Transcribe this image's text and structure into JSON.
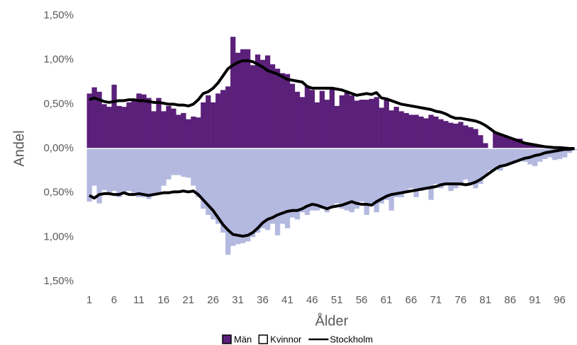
{
  "chart_data": {
    "type": "bar",
    "x_label": "Ålder",
    "y_label": "Andel",
    "ylim": [
      -1.5,
      1.5
    ],
    "yticks": [
      {
        "value": 1.5,
        "label": "1,50%"
      },
      {
        "value": 1,
        "label": "1,00%"
      },
      {
        "value": 0.5,
        "label": "0,50%"
      },
      {
        "value": 0,
        "label": "0,00%"
      },
      {
        "value": -0.5,
        "label": "0,50%"
      },
      {
        "value": -1,
        "label": "1,00%"
      },
      {
        "value": -1.5,
        "label": "1,50%"
      }
    ],
    "categories": [
      1,
      null,
      null,
      null,
      null,
      6,
      null,
      null,
      null,
      null,
      11,
      null,
      null,
      null,
      null,
      16,
      null,
      null,
      null,
      null,
      21,
      null,
      null,
      null,
      null,
      26,
      null,
      null,
      null,
      null,
      31,
      null,
      null,
      null,
      null,
      36,
      null,
      null,
      null,
      null,
      41,
      null,
      null,
      null,
      null,
      46,
      null,
      null,
      null,
      null,
      51,
      null,
      null,
      null,
      null,
      56,
      null,
      null,
      null,
      null,
      61,
      null,
      null,
      null,
      null,
      66,
      null,
      null,
      null,
      null,
      71,
      null,
      null,
      null,
      null,
      76,
      null,
      null,
      null,
      null,
      81,
      null,
      null,
      null,
      null,
      86,
      null,
      null,
      null,
      null,
      91,
      null,
      null,
      null,
      null,
      96,
      null,
      null,
      null
    ],
    "series": [
      {
        "name": "Män",
        "type": "bar",
        "color": "#5b2079",
        "values": [
          0.62,
          0.69,
          0.64,
          0.5,
          0.47,
          0.72,
          0.48,
          0.47,
          0.52,
          0.55,
          0.62,
          0.61,
          0.57,
          0.42,
          0.57,
          0.42,
          0.48,
          0.45,
          0.38,
          0.4,
          0.33,
          0.36,
          0.35,
          0.52,
          0.6,
          0.52,
          0.62,
          0.66,
          0.7,
          1.26,
          1.08,
          1.12,
          1.12,
          0.94,
          1.06,
          1.0,
          1.05,
          0.95,
          0.9,
          0.85,
          0.84,
          0.73,
          0.64,
          0.58,
          0.7,
          0.66,
          0.52,
          0.65,
          0.55,
          0.67,
          0.48,
          0.6,
          0.63,
          0.6,
          0.54,
          0.55,
          0.55,
          0.56,
          0.58,
          0.46,
          0.55,
          0.43,
          0.47,
          0.42,
          0.4,
          0.38,
          0.38,
          0.36,
          0.34,
          0.38,
          0.36,
          0.33,
          0.31,
          0.29,
          0.28,
          0.3,
          0.26,
          0.24,
          0.22,
          0.15,
          0.06,
          0,
          0.18,
          0.16,
          0.13,
          0.12,
          0.11,
          0.11,
          0.07,
          0.05,
          0.04,
          0.03,
          0.02,
          0.02,
          0.01,
          0.01,
          0.01,
          0,
          0
        ]
      },
      {
        "name": "Kvinnor",
        "type": "bar",
        "color": "#b4b9e0",
        "legend_color": "#ffffff",
        "values": [
          -0.6,
          -0.42,
          -0.62,
          -0.47,
          -0.5,
          -0.48,
          -0.55,
          -0.5,
          -0.48,
          -0.5,
          -0.55,
          -0.55,
          -0.57,
          -0.52,
          -0.5,
          -0.42,
          -0.35,
          -0.3,
          -0.3,
          -0.32,
          -0.33,
          -0.42,
          -0.55,
          -0.68,
          -0.75,
          -0.8,
          -0.85,
          -0.95,
          -1.2,
          -1.1,
          -1.08,
          -1.07,
          -1.05,
          -1.0,
          -0.95,
          -0.9,
          -0.92,
          -0.85,
          -0.98,
          -0.85,
          -0.9,
          -0.78,
          -0.8,
          -0.72,
          -0.75,
          -0.7,
          -0.7,
          -0.68,
          -0.72,
          -0.65,
          -0.62,
          -0.68,
          -0.7,
          -0.72,
          -0.68,
          -0.6,
          -0.75,
          -0.65,
          -0.72,
          -0.62,
          -0.58,
          -0.7,
          -0.55,
          -0.55,
          -0.5,
          -0.45,
          -0.55,
          -0.48,
          -0.45,
          -0.58,
          -0.4,
          -0.45,
          -0.4,
          -0.48,
          -0.45,
          -0.42,
          -0.35,
          -0.4,
          -0.45,
          -0.4,
          -0.3,
          -0.25,
          -0.22,
          -0.25,
          -0.2,
          -0.18,
          -0.15,
          -0.12,
          -0.15,
          -0.18,
          -0.2,
          -0.15,
          -0.12,
          -0.1,
          -0.13,
          -0.12,
          -0.1,
          -0.05,
          -0.02
        ]
      },
      {
        "name": "Stockholm",
        "type": "line",
        "color": "#000000",
        "values": [
          0.55,
          0.57,
          0.55,
          0.53,
          0.52,
          0.53,
          0.54,
          0.54,
          0.55,
          0.55,
          0.54,
          0.54,
          0.53,
          0.52,
          0.52,
          0.51,
          0.5,
          0.5,
          0.49,
          0.49,
          0.48,
          0.5,
          0.55,
          0.62,
          0.64,
          0.68,
          0.74,
          0.82,
          0.9,
          0.94,
          0.97,
          0.99,
          0.99,
          0.98,
          0.95,
          0.92,
          0.88,
          0.86,
          0.84,
          0.81,
          0.78,
          0.77,
          0.76,
          0.75,
          0.7,
          0.68,
          0.68,
          0.68,
          0.68,
          0.68,
          0.67,
          0.66,
          0.64,
          0.62,
          0.6,
          0.61,
          0.62,
          0.61,
          0.63,
          0.57,
          0.56,
          0.54,
          0.52,
          0.5,
          0.49,
          0.48,
          0.47,
          0.46,
          0.45,
          0.44,
          0.42,
          0.41,
          0.39,
          0.36,
          0.34,
          0.34,
          0.33,
          0.32,
          0.31,
          0.29,
          0.26,
          0.22,
          0.18,
          0.16,
          0.14,
          0.12,
          0.1,
          0.08,
          0.06,
          0.05,
          0.04,
          0.03,
          0.02,
          0.015,
          0.01,
          0.01,
          0.005,
          0,
          0
        ],
        "women_values": [
          -0.53,
          -0.56,
          -0.52,
          -0.51,
          -0.51,
          -0.52,
          -0.52,
          -0.5,
          -0.52,
          -0.52,
          -0.51,
          -0.52,
          -0.53,
          -0.52,
          -0.51,
          -0.5,
          -0.5,
          -0.49,
          -0.49,
          -0.48,
          -0.49,
          -0.48,
          -0.52,
          -0.58,
          -0.64,
          -0.7,
          -0.78,
          -0.86,
          -0.92,
          -0.97,
          -0.98,
          -0.99,
          -0.98,
          -0.95,
          -0.9,
          -0.84,
          -0.8,
          -0.78,
          -0.75,
          -0.73,
          -0.71,
          -0.7,
          -0.7,
          -0.68,
          -0.65,
          -0.63,
          -0.64,
          -0.66,
          -0.68,
          -0.66,
          -0.65,
          -0.64,
          -0.62,
          -0.6,
          -0.62,
          -0.63,
          -0.63,
          -0.64,
          -0.6,
          -0.57,
          -0.54,
          -0.52,
          -0.51,
          -0.5,
          -0.49,
          -0.48,
          -0.47,
          -0.46,
          -0.45,
          -0.44,
          -0.43,
          -0.41,
          -0.4,
          -0.4,
          -0.4,
          -0.4,
          -0.41,
          -0.4,
          -0.38,
          -0.35,
          -0.31,
          -0.27,
          -0.23,
          -0.2,
          -0.19,
          -0.17,
          -0.15,
          -0.13,
          -0.11,
          -0.1,
          -0.08,
          -0.07,
          -0.05,
          -0.04,
          -0.03,
          -0.02,
          -0.01,
          -0.01,
          0
        ]
      }
    ]
  }
}
